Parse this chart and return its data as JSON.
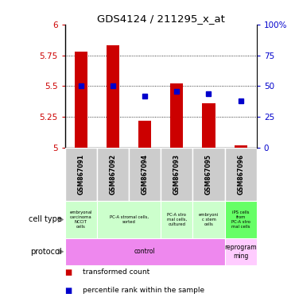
{
  "title": "GDS4124 / 211295_x_at",
  "samples": [
    "GSM867091",
    "GSM867092",
    "GSM867094",
    "GSM867093",
    "GSM867095",
    "GSM867096"
  ],
  "transformed_counts": [
    5.78,
    5.83,
    5.22,
    5.52,
    5.36,
    5.02
  ],
  "percentile_ranks": [
    50,
    50,
    42,
    46,
    44,
    38
  ],
  "ylim_left": [
    5.0,
    6.0
  ],
  "ylim_right": [
    0,
    100
  ],
  "yticks_left": [
    5.0,
    5.25,
    5.5,
    5.75,
    6.0
  ],
  "ytick_labels_left": [
    "5",
    "5.25",
    "5.5",
    "5.75",
    "6"
  ],
  "yticks_right": [
    0,
    25,
    50,
    75,
    100
  ],
  "ytick_labels_right": [
    "0",
    "25",
    "50",
    "75",
    "100%"
  ],
  "cell_types": [
    {
      "label": "embryonal\ncarcinoma\nNCCIT\ncells",
      "color": "#ccffcc",
      "span": [
        0,
        1
      ]
    },
    {
      "label": "PC-A stromal cells,\nsorted",
      "color": "#ccffcc",
      "span": [
        1,
        3
      ]
    },
    {
      "label": "PC-A stro\nmal cells,\ncultured",
      "color": "#ccffcc",
      "span": [
        3,
        4
      ]
    },
    {
      "label": "embryoni\nc stem\ncells",
      "color": "#ccffcc",
      "span": [
        4,
        5
      ]
    },
    {
      "label": "iPS cells\nfrom\nPC-A stro\nmal cells",
      "color": "#66ff66",
      "span": [
        5,
        6
      ]
    }
  ],
  "protocols": [
    {
      "label": "control",
      "color": "#ee88ee",
      "span": [
        0,
        5
      ]
    },
    {
      "label": "reprogram\nming",
      "color": "#ffccff",
      "span": [
        5,
        6
      ]
    }
  ],
  "bar_color": "#cc0000",
  "dot_color": "#0000cc",
  "grid_color": "#888888",
  "background_color": "#ffffff",
  "label_color_left": "#cc0000",
  "label_color_right": "#0000cc",
  "sample_bg_color": "#cccccc"
}
